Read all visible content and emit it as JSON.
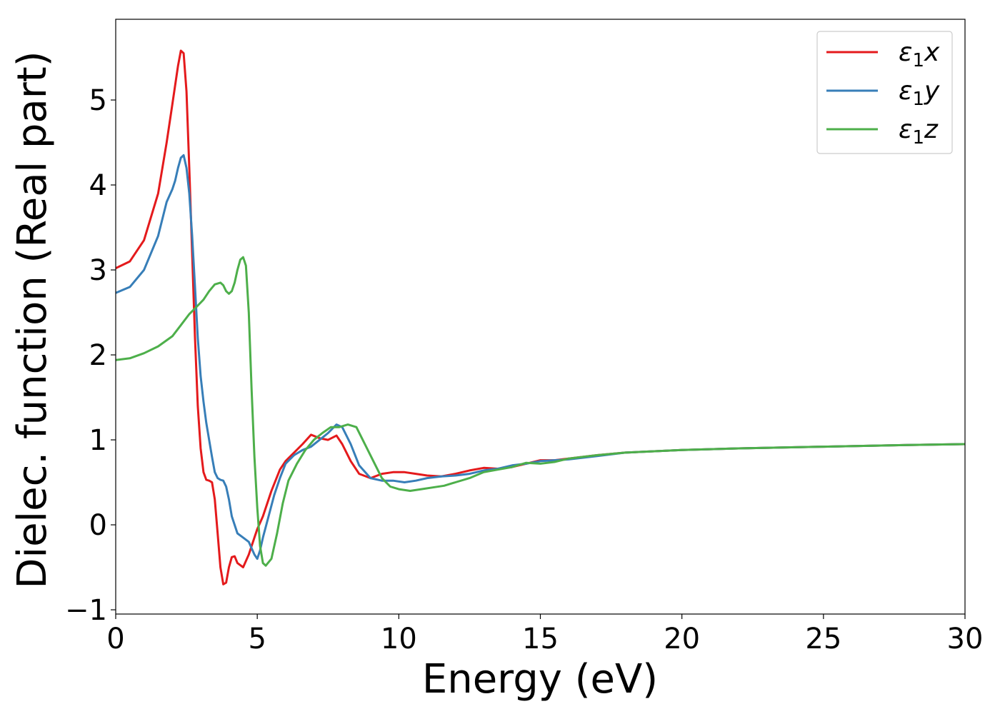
{
  "chart_data": {
    "type": "line",
    "title": "",
    "xlabel": "Energy (eV)",
    "ylabel": "Dielec. function (Real part)",
    "xlim": [
      0,
      30
    ],
    "ylim": [
      -1.05,
      5.95
    ],
    "xticks": [
      0,
      5,
      10,
      15,
      20,
      25,
      30
    ],
    "xtick_labels": [
      "0",
      "5",
      "10",
      "15",
      "20",
      "25",
      "30"
    ],
    "yticks": [
      -1,
      0,
      1,
      2,
      3,
      4,
      5
    ],
    "ytick_labels": [
      "−1",
      "0",
      "1",
      "2",
      "3",
      "4",
      "5"
    ],
    "grid": false,
    "legend_position": "top-right",
    "series": [
      {
        "name": "ε1x",
        "legend_base": "ε",
        "legend_sub": "1",
        "legend_var": "x",
        "color": "#e41a1c",
        "x": [
          0,
          0.5,
          1.0,
          1.5,
          1.8,
          2.0,
          2.2,
          2.3,
          2.4,
          2.5,
          2.6,
          2.7,
          2.8,
          2.9,
          3.0,
          3.1,
          3.2,
          3.3,
          3.4,
          3.5,
          3.6,
          3.7,
          3.8,
          3.9,
          4.0,
          4.1,
          4.2,
          4.3,
          4.5,
          4.7,
          4.9,
          5.0,
          5.2,
          5.5,
          5.8,
          6.0,
          6.3,
          6.6,
          6.9,
          7.2,
          7.5,
          7.8,
          8.0,
          8.3,
          8.6,
          9.0,
          9.4,
          9.8,
          10.2,
          10.6,
          11.0,
          11.5,
          12.0,
          12.5,
          13.0,
          13.5,
          14.0,
          14.5,
          15.0,
          15.5,
          16.0,
          17.0,
          18.0,
          20.0,
          22.0,
          25.0,
          28.0,
          30.0
        ],
        "values": [
          3.02,
          3.1,
          3.35,
          3.9,
          4.5,
          4.95,
          5.4,
          5.58,
          5.55,
          5.1,
          4.2,
          3.2,
          2.2,
          1.4,
          0.9,
          0.62,
          0.53,
          0.52,
          0.5,
          0.3,
          -0.1,
          -0.5,
          -0.7,
          -0.68,
          -0.5,
          -0.38,
          -0.37,
          -0.45,
          -0.5,
          -0.35,
          -0.15,
          -0.05,
          0.1,
          0.4,
          0.65,
          0.75,
          0.85,
          0.95,
          1.06,
          1.02,
          1.0,
          1.05,
          0.95,
          0.75,
          0.6,
          0.55,
          0.6,
          0.62,
          0.62,
          0.6,
          0.58,
          0.57,
          0.6,
          0.64,
          0.67,
          0.66,
          0.68,
          0.72,
          0.76,
          0.76,
          0.78,
          0.82,
          0.85,
          0.88,
          0.9,
          0.92,
          0.94,
          0.95
        ]
      },
      {
        "name": "ε1y",
        "legend_base": "ε",
        "legend_sub": "1",
        "legend_var": "y",
        "color": "#377eb8",
        "x": [
          0,
          0.5,
          1.0,
          1.5,
          1.8,
          2.0,
          2.1,
          2.2,
          2.3,
          2.4,
          2.5,
          2.6,
          2.7,
          2.8,
          2.9,
          3.0,
          3.1,
          3.2,
          3.3,
          3.4,
          3.5,
          3.6,
          3.7,
          3.8,
          3.9,
          4.0,
          4.1,
          4.3,
          4.5,
          4.7,
          4.9,
          5.0,
          5.1,
          5.2,
          5.4,
          5.6,
          5.8,
          6.0,
          6.3,
          6.6,
          6.9,
          7.2,
          7.5,
          7.8,
          8.0,
          8.3,
          8.6,
          9.0,
          9.4,
          9.8,
          10.2,
          10.6,
          11.0,
          11.5,
          12.0,
          12.5,
          13.0,
          13.5,
          14.0,
          14.5,
          15.0,
          15.5,
          16.0,
          17.0,
          18.0,
          20.0,
          22.0,
          25.0,
          28.0,
          30.0
        ],
        "values": [
          2.73,
          2.8,
          3.0,
          3.4,
          3.8,
          3.95,
          4.05,
          4.2,
          4.32,
          4.35,
          4.2,
          3.9,
          3.4,
          2.8,
          2.2,
          1.75,
          1.45,
          1.2,
          1.0,
          0.8,
          0.62,
          0.55,
          0.53,
          0.52,
          0.45,
          0.3,
          0.1,
          -0.1,
          -0.15,
          -0.2,
          -0.35,
          -0.4,
          -0.3,
          -0.15,
          0.1,
          0.35,
          0.55,
          0.72,
          0.82,
          0.88,
          0.92,
          1.0,
          1.08,
          1.18,
          1.15,
          0.95,
          0.7,
          0.55,
          0.52,
          0.52,
          0.5,
          0.52,
          0.55,
          0.57,
          0.58,
          0.6,
          0.64,
          0.66,
          0.7,
          0.72,
          0.75,
          0.76,
          0.77,
          0.81,
          0.85,
          0.88,
          0.9,
          0.92,
          0.94,
          0.95
        ]
      },
      {
        "name": "ε1z",
        "legend_base": "ε",
        "legend_sub": "1",
        "legend_var": "z",
        "color": "#4daf4a",
        "x": [
          0,
          0.5,
          1.0,
          1.5,
          2.0,
          2.3,
          2.6,
          2.9,
          3.1,
          3.3,
          3.5,
          3.7,
          3.8,
          3.9,
          4.0,
          4.1,
          4.2,
          4.3,
          4.4,
          4.5,
          4.6,
          4.7,
          4.8,
          4.9,
          5.0,
          5.1,
          5.2,
          5.3,
          5.5,
          5.7,
          5.9,
          6.1,
          6.4,
          6.7,
          7.0,
          7.3,
          7.6,
          7.9,
          8.2,
          8.5,
          8.8,
          9.1,
          9.4,
          9.7,
          10.0,
          10.4,
          10.8,
          11.2,
          11.6,
          12.0,
          12.5,
          13.0,
          13.5,
          14.0,
          14.5,
          15.0,
          15.5,
          16.0,
          16.5,
          17.0,
          18.0,
          20.0,
          22.0,
          25.0,
          28.0,
          30.0
        ],
        "values": [
          1.94,
          1.96,
          2.02,
          2.1,
          2.22,
          2.35,
          2.48,
          2.58,
          2.65,
          2.75,
          2.83,
          2.85,
          2.82,
          2.75,
          2.72,
          2.75,
          2.85,
          3.0,
          3.12,
          3.15,
          3.05,
          2.5,
          1.6,
          0.8,
          0.2,
          -0.25,
          -0.45,
          -0.48,
          -0.4,
          -0.1,
          0.25,
          0.52,
          0.72,
          0.88,
          1.0,
          1.08,
          1.15,
          1.15,
          1.18,
          1.15,
          0.95,
          0.75,
          0.55,
          0.45,
          0.42,
          0.4,
          0.42,
          0.44,
          0.46,
          0.5,
          0.55,
          0.62,
          0.65,
          0.68,
          0.73,
          0.72,
          0.74,
          0.78,
          0.8,
          0.82,
          0.85,
          0.88,
          0.9,
          0.92,
          0.94,
          0.95
        ]
      }
    ]
  }
}
